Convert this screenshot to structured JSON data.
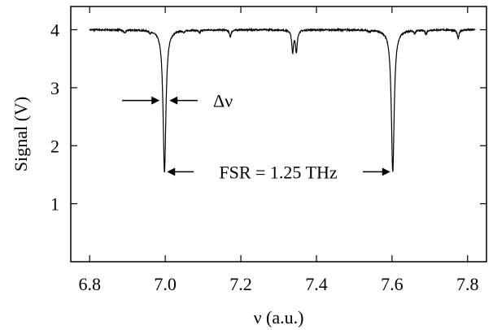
{
  "chart_data": {
    "type": "line",
    "title": "",
    "xlabel": "ν (a.u.)",
    "ylabel": "Signal (V)",
    "xlim": [
      6.75,
      7.85
    ],
    "ylim": [
      0,
      4.4
    ],
    "x_ticks": [
      "6.8",
      "7.0",
      "7.2",
      "7.4",
      "7.6",
      "7.8"
    ],
    "y_ticks": [
      "1",
      "2",
      "3",
      "4"
    ],
    "grid": false,
    "baseline": 4.0,
    "x_range": [
      6.8,
      7.82
    ],
    "series": [
      {
        "dips": [
          {
            "x": 6.893,
            "y": 3.94
          },
          {
            "x": 6.96,
            "y": 3.97
          },
          {
            "x": 6.998,
            "y": 1.55
          },
          {
            "x": 7.05,
            "y": 3.97
          },
          {
            "x": 7.09,
            "y": 3.95
          },
          {
            "x": 7.172,
            "y": 3.88
          },
          {
            "x": 7.337,
            "y": 3.62
          },
          {
            "x": 7.347,
            "y": 3.62
          },
          {
            "x": 7.54,
            "y": 3.97
          },
          {
            "x": 7.602,
            "y": 1.55
          },
          {
            "x": 7.66,
            "y": 3.95
          },
          {
            "x": 7.69,
            "y": 3.93
          },
          {
            "x": 7.775,
            "y": 3.85
          }
        ]
      }
    ],
    "annotations": {
      "linewidth_label": "Δν",
      "fsr_label": "FSR = 1.25 THz"
    }
  }
}
